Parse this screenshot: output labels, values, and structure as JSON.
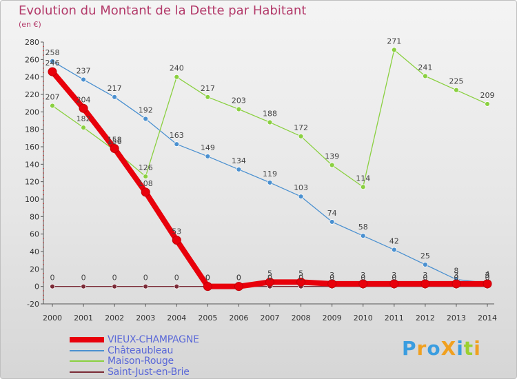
{
  "title": "Evolution du Montant de la Dette par Habitant",
  "subtitle": "(en €)",
  "logo": {
    "text": "ProXiti",
    "letters": [
      {
        "ch": "P",
        "color": "#3a9de0"
      },
      {
        "ch": "r",
        "color": "#f0a020"
      },
      {
        "ch": "o",
        "color": "#3a9de0"
      },
      {
        "ch": "X",
        "color": "#f0a020"
      },
      {
        "ch": "i",
        "color": "#3a9de0"
      },
      {
        "ch": "t",
        "color": "#9bd030"
      },
      {
        "ch": "i",
        "color": "#f0a020"
      }
    ]
  },
  "chart_data": {
    "type": "line",
    "title": "Evolution du Montant de la Dette par Habitant",
    "subtitle": "(en €)",
    "x": [
      "2000",
      "2001",
      "2002",
      "2003",
      "2004",
      "2005",
      "2006",
      "2007",
      "2008",
      "2009",
      "2010",
      "2011",
      "2012",
      "2013",
      "2014"
    ],
    "ylim": [
      -20,
      280
    ],
    "yticks": [
      -20,
      0,
      20,
      40,
      60,
      80,
      100,
      120,
      140,
      160,
      180,
      200,
      220,
      240,
      260,
      280
    ],
    "grid": false,
    "legend": "bottom-left",
    "series": [
      {
        "name": "VIEUX-CHAMPAGNE",
        "color": "#e8000b",
        "values": [
          246,
          204,
          158,
          108,
          53,
          0,
          0,
          5,
          5,
          3,
          3,
          3,
          3,
          3,
          3
        ],
        "labels": [
          "246",
          "204",
          "158",
          "108",
          "53",
          "0",
          "0",
          "5",
          "5",
          "3",
          "3",
          "3",
          "3",
          "3",
          "3"
        ]
      },
      {
        "name": "Châteaubleau",
        "color": "#4a90d0",
        "values": [
          258,
          237,
          217,
          192,
          163,
          149,
          134,
          119,
          103,
          74,
          58,
          42,
          25,
          8,
          4
        ],
        "labels": [
          "258",
          "237",
          "217",
          "192",
          "163",
          "149",
          "134",
          "119",
          "103",
          "74",
          "58",
          "42",
          "25",
          "8",
          "4"
        ]
      },
      {
        "name": "Maison-Rouge",
        "color": "#8ad040",
        "values": [
          207,
          182,
          156,
          126,
          240,
          217,
          203,
          188,
          172,
          139,
          114,
          271,
          241,
          225,
          209
        ],
        "labels": [
          "207",
          "182",
          "156",
          "126",
          "240",
          "217",
          "203",
          "188",
          "172",
          "139",
          "114",
          "271",
          "241",
          "225",
          "209"
        ]
      },
      {
        "name": "Saint-Just-en-Brie",
        "color": "#7a2a36",
        "values": [
          0,
          0,
          0,
          0,
          0,
          0,
          0,
          0,
          0,
          0,
          0,
          0,
          0,
          0,
          0
        ],
        "labels": [
          "0",
          "0",
          "0",
          "0",
          "0",
          "0",
          "0",
          "0",
          "0",
          "0",
          "0",
          "0",
          "0",
          "0",
          "0"
        ]
      }
    ]
  }
}
